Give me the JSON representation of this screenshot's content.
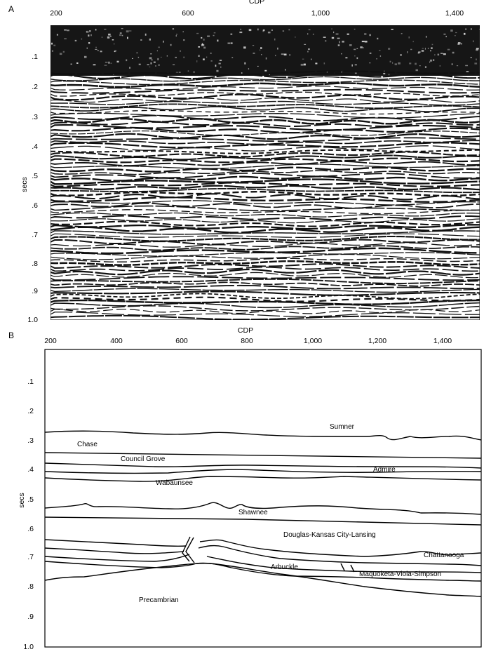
{
  "panel_a": {
    "letter": "A",
    "x_title": "CDP",
    "x_ticks": [
      "200",
      "600",
      "1,000",
      "1,400"
    ],
    "y_title": "secs",
    "y_ticks": [
      ".1",
      ".2",
      ".3",
      ".4",
      ".5",
      ".6",
      ".7",
      ".8",
      ".9",
      "1.0"
    ]
  },
  "panel_b": {
    "letter": "B",
    "x_title": "CDP",
    "x_ticks": [
      "200",
      "400",
      "600",
      "800",
      "1,000",
      "1,200",
      "1,400"
    ],
    "y_title": "secs",
    "y_ticks": [
      ".1",
      ".2",
      ".3",
      ".4",
      ".5",
      ".6",
      ".7",
      ".8",
      ".9",
      "1.0"
    ],
    "units": [
      {
        "name": "Sumner"
      },
      {
        "name": "Chase"
      },
      {
        "name": "Council Grove"
      },
      {
        "name": "Admire"
      },
      {
        "name": "Wabaunsee"
      },
      {
        "name": "Shawnee"
      },
      {
        "name": "Douglas-Kansas City-Lansing"
      },
      {
        "name": "Chattanooga"
      },
      {
        "name": "Arbuckle"
      },
      {
        "name": "Maquoketa-Viola-Simpson"
      },
      {
        "name": "Precambrian"
      }
    ]
  }
}
